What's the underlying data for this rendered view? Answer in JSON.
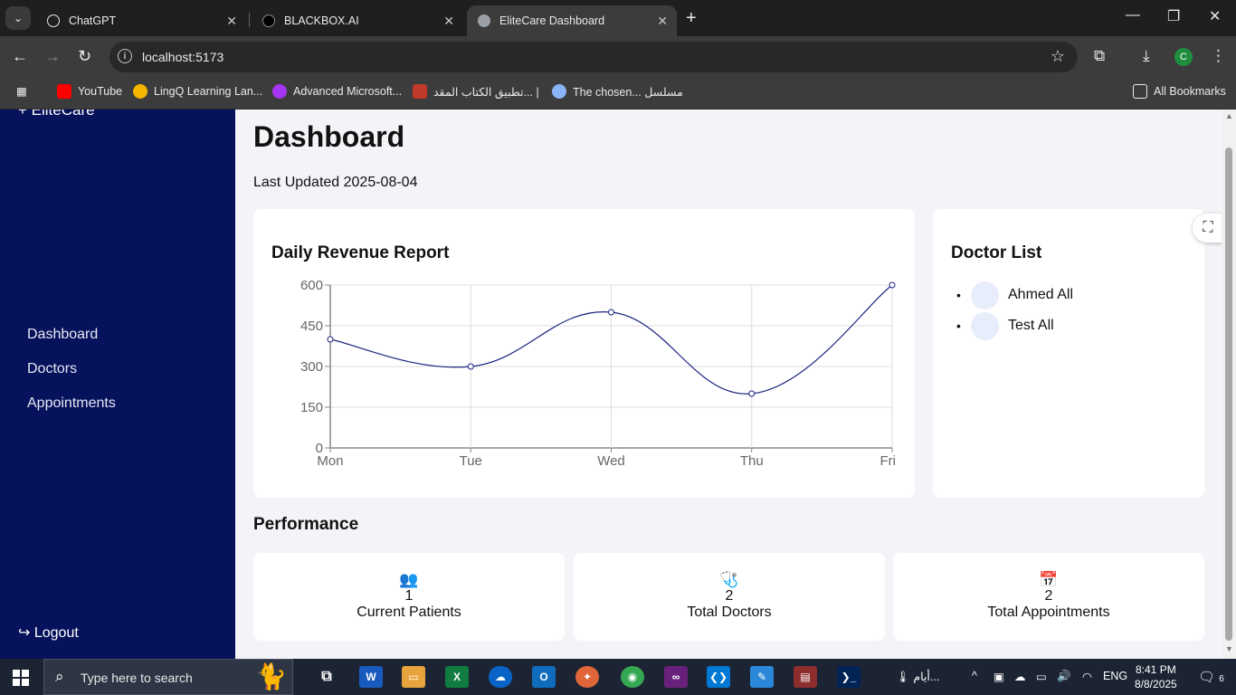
{
  "browser": {
    "tabs": [
      {
        "title": "ChatGPT"
      },
      {
        "title": "BLACKBOX.AI"
      },
      {
        "title": "EliteCare Dashboard"
      }
    ],
    "url": "localhost:5173",
    "profile_initial": "C",
    "bookmarks": [
      {
        "label": "YouTube"
      },
      {
        "label": "LingQ Learning Lan..."
      },
      {
        "label": "Advanced Microsoft..."
      },
      {
        "label": "تطبيق الكتاب المقد... |"
      },
      {
        "label": "The chosen... مسلسل"
      }
    ],
    "all_bookmarks": "All Bookmarks"
  },
  "sidebar": {
    "brand": "+ EliteCare",
    "items": [
      {
        "label": "Dashboard"
      },
      {
        "label": "Doctors"
      },
      {
        "label": "Appointments"
      }
    ],
    "logout": "Logout"
  },
  "main": {
    "title": "Dashboard",
    "last_updated": "Last Updated 2025-08-04",
    "chart_title": "Daily Revenue Report",
    "doctor_list_title": "Doctor List",
    "doctors": [
      {
        "name": "Ahmed All"
      },
      {
        "name": "Test All"
      }
    ],
    "performance_title": "Performance",
    "stats": [
      {
        "icon": "people-icon",
        "value": "1",
        "label": "Current Patients"
      },
      {
        "icon": "stethoscope-icon",
        "value": "2",
        "label": "Total Doctors"
      },
      {
        "icon": "calendar-icon",
        "value": "2",
        "label": "Total Appointments"
      }
    ]
  },
  "chart_data": {
    "type": "line",
    "title": "Daily Revenue Report",
    "categories": [
      "Mon",
      "Tue",
      "Wed",
      "Thu",
      "Fri"
    ],
    "values": [
      400,
      300,
      500,
      200,
      600
    ],
    "y_ticks": [
      "0",
      "150",
      "300",
      "450",
      "600"
    ],
    "ylim": [
      0,
      600
    ],
    "grid": true,
    "curve": "smooth",
    "line_color": "#1a237e"
  },
  "taskbar": {
    "search_placeholder": "Type here to search",
    "weather": "أيام...",
    "language": "ENG",
    "time": "8:41 PM",
    "date": "8/8/2025",
    "notifications": "6"
  }
}
